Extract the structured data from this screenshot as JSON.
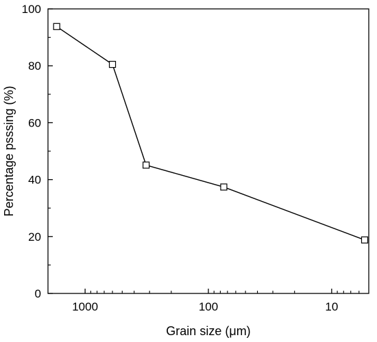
{
  "chart_data": {
    "type": "line",
    "title": "",
    "xlabel": "Grain size (μm)",
    "ylabel": "Percentage psssing (%)",
    "xscale": "log",
    "xaxis_reversed": true,
    "xlim": [
      5,
      2000
    ],
    "ylim": [
      0,
      100
    ],
    "x_ticks": [
      1000,
      100,
      10
    ],
    "x_tick_labels": [
      "1000",
      "100",
      "10"
    ],
    "y_ticks": [
      0,
      20,
      40,
      60,
      80,
      100
    ],
    "y_tick_labels": [
      "0",
      "20",
      "40",
      "60",
      "80",
      "100"
    ],
    "grid": false,
    "legend": "none",
    "marker": "open-square",
    "line_color": "#000000",
    "series": [
      {
        "x": [
          1700,
          600,
          320,
          75,
          5.4
        ],
        "y": [
          93.8,
          80.5,
          45.1,
          37.4,
          18.8
        ]
      }
    ]
  }
}
